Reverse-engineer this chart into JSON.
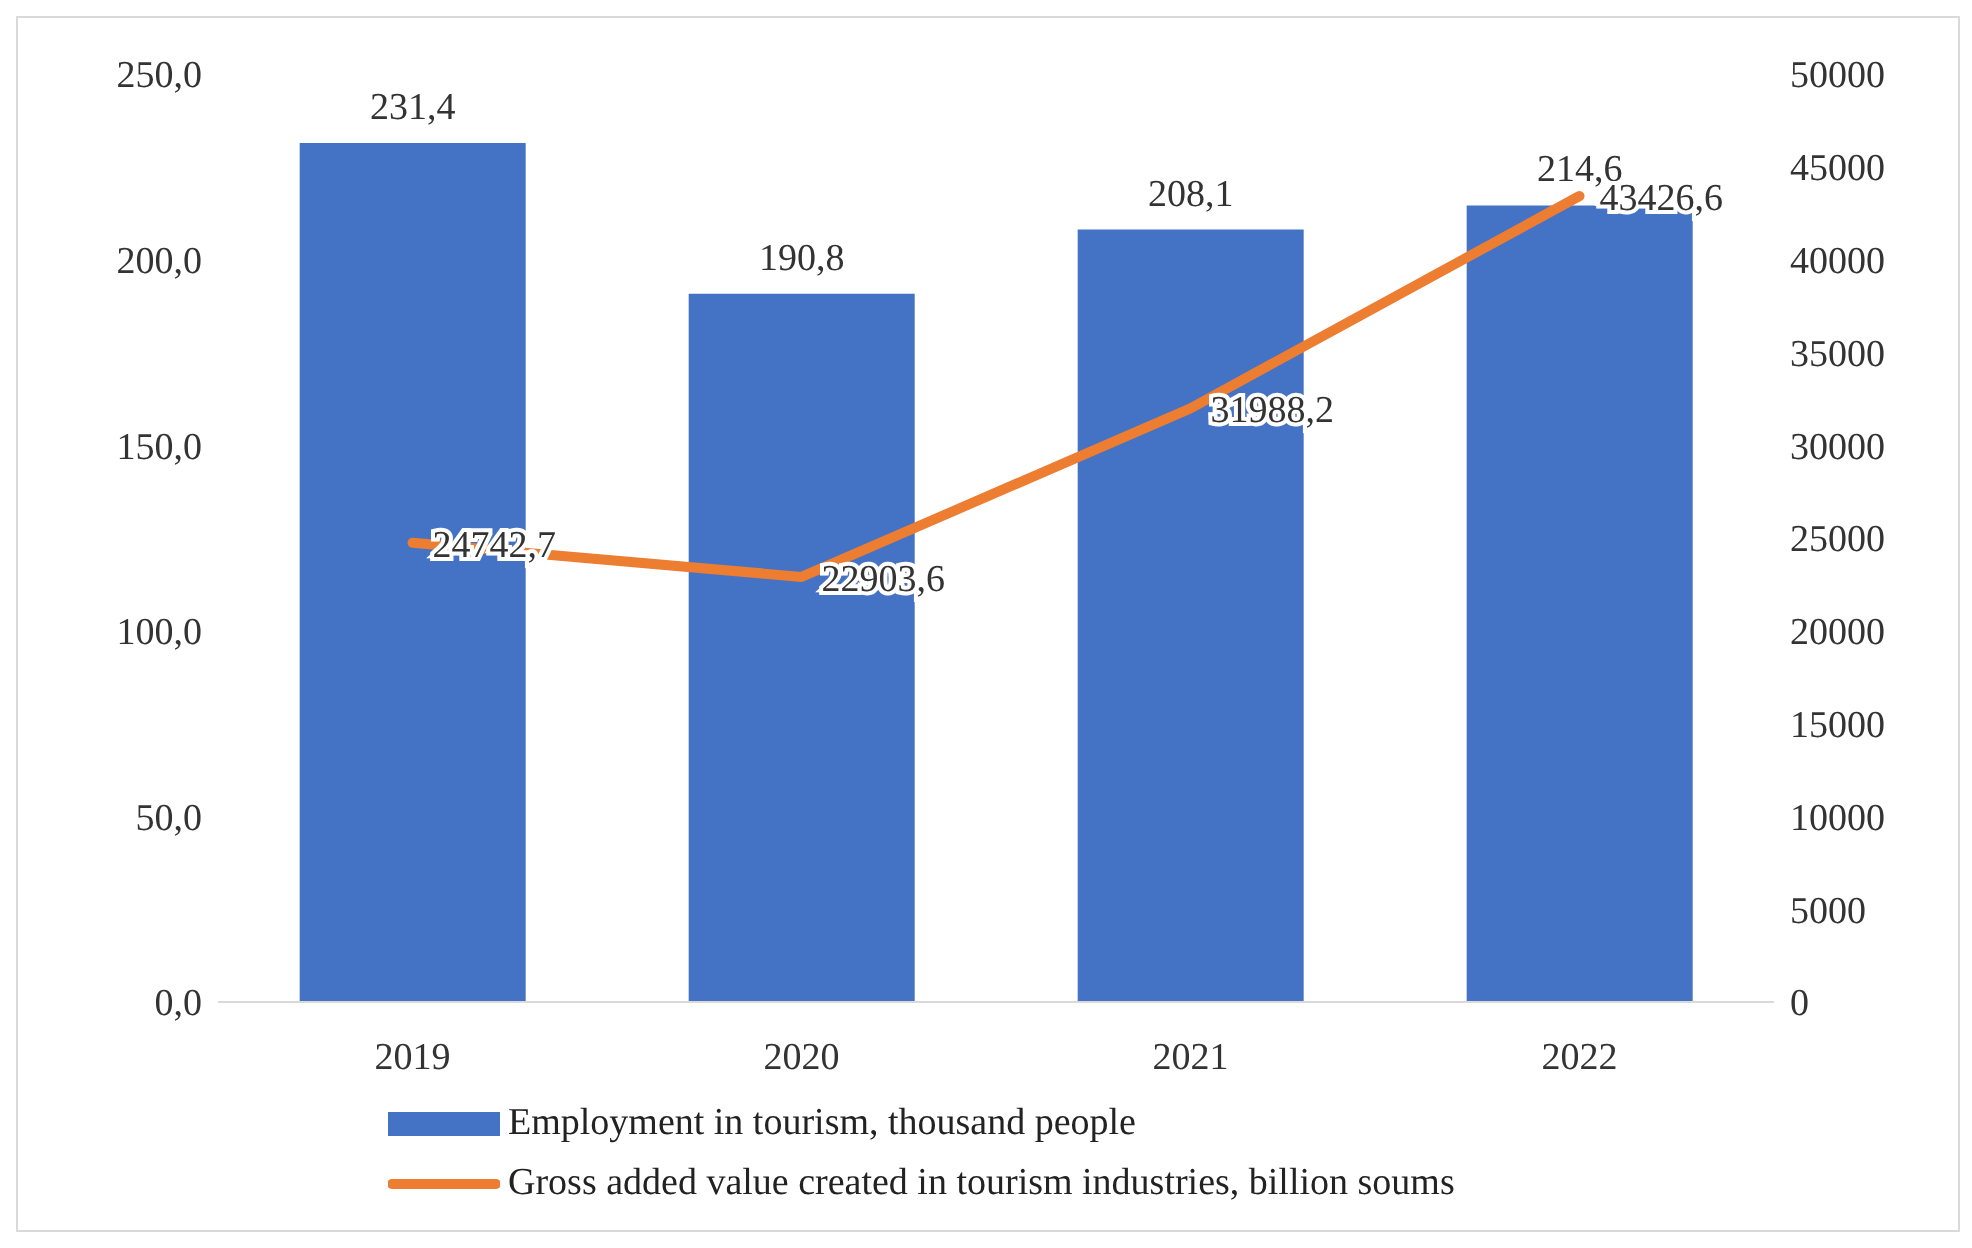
{
  "chart_data": {
    "type": "bar",
    "categories": [
      "2019",
      "2020",
      "2021",
      "2022"
    ],
    "series": [
      {
        "name": "Employment in tourism, thousand people",
        "color": "#4472c4",
        "values": [
          231.4,
          190.8,
          208.1,
          214.6
        ],
        "value_labels": [
          "231,4",
          "190,8",
          "208,1",
          "214,6"
        ]
      },
      {
        "name": "Gross added value created in tourism industries, billion soums",
        "type": "line",
        "axis": "y2",
        "color": "#ed7d31",
        "values": [
          24742.7,
          22903.6,
          31988.2,
          43426.6
        ],
        "value_labels": [
          "24742,7",
          "22903,6",
          "31988,2",
          "43426,6"
        ]
      }
    ],
    "ylim": [
      0,
      250
    ],
    "yticks": [
      {
        "value": 0,
        "label": "0,0"
      },
      {
        "value": 50,
        "label": "50,0"
      },
      {
        "value": 100,
        "label": "100,0"
      },
      {
        "value": 150,
        "label": "150,0"
      },
      {
        "value": 200,
        "label": "200,0"
      },
      {
        "value": 250,
        "label": "250,0"
      }
    ],
    "y2lim": [
      0,
      50000
    ],
    "y2ticks": [
      0,
      5000,
      10000,
      15000,
      20000,
      25000,
      30000,
      35000,
      40000,
      45000,
      50000
    ],
    "legend": "bottom",
    "grid": false,
    "marker": "none"
  }
}
